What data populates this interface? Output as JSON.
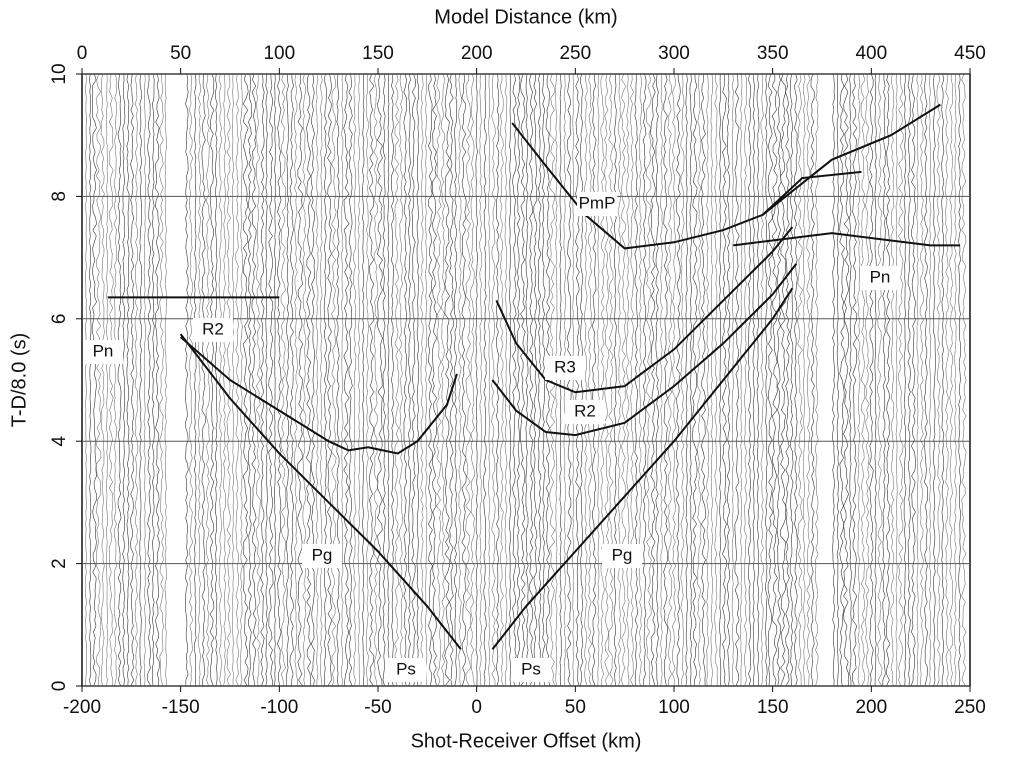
{
  "chart_data": {
    "type": "line",
    "title": "Model Distance (km)",
    "x_label": "Shot-Receiver Offset (km)",
    "y_label": "T-D/8.0 (s)",
    "xlim": [
      -200,
      250
    ],
    "xticks": [
      -200,
      -150,
      -100,
      -50,
      0,
      50,
      100,
      150,
      200,
      250
    ],
    "x2lim": [
      0,
      450
    ],
    "x2ticks": [
      0,
      50,
      100,
      150,
      200,
      250,
      300,
      350,
      400,
      450
    ],
    "ylim": [
      0,
      10
    ],
    "yticks": [
      0,
      2,
      4,
      6,
      8,
      10
    ],
    "grid": true,
    "color": "#111111",
    "series": [
      {
        "x": [
          -150,
          -125,
          -100,
          -75,
          -50,
          -25,
          -8
        ],
        "values": [
          5.75,
          4.7,
          3.8,
          3.0,
          2.2,
          1.3,
          0.6
        ]
      },
      {
        "x": [
          8,
          25,
          50,
          75,
          100,
          125,
          150,
          160
        ],
        "values": [
          0.6,
          1.3,
          2.2,
          3.1,
          4.0,
          5.0,
          6.0,
          6.5
        ]
      },
      {
        "x": [
          -150,
          -125,
          -100,
          -75,
          -65,
          -55,
          -40,
          -30,
          -15,
          -10
        ],
        "values": [
          5.7,
          5.0,
          4.5,
          4.0,
          3.85,
          3.9,
          3.8,
          4.0,
          4.6,
          5.1
        ]
      },
      {
        "x": [
          8,
          20,
          35,
          50,
          75,
          100,
          125,
          150,
          162
        ],
        "values": [
          5.0,
          4.5,
          4.15,
          4.1,
          4.3,
          4.9,
          5.6,
          6.4,
          6.9
        ]
      },
      {
        "x": [
          10,
          20,
          35,
          50,
          75,
          100,
          125,
          150,
          160
        ],
        "values": [
          6.3,
          5.6,
          5.0,
          4.8,
          4.9,
          5.5,
          6.3,
          7.1,
          7.5
        ]
      },
      {
        "x": [
          18,
          35,
          55,
          75,
          100,
          125,
          145,
          165,
          195
        ],
        "values": [
          9.2,
          8.5,
          7.7,
          7.15,
          7.25,
          7.45,
          7.7,
          8.3,
          8.4
        ]
      },
      {
        "x": [
          145,
          180,
          210,
          235
        ],
        "values": [
          7.7,
          8.6,
          9.0,
          9.5
        ]
      },
      {
        "x": [
          130,
          180,
          230,
          245
        ],
        "values": [
          7.2,
          7.4,
          7.2,
          7.2
        ]
      },
      {
        "x": [
          -187,
          -100
        ],
        "values": [
          6.35,
          6.35
        ]
      }
    ],
    "annotations": [
      "Pn",
      "R2",
      "PmP",
      "R3",
      "R2",
      "Pn",
      "Pg",
      "Pg",
      "Ps",
      "Ps"
    ]
  }
}
